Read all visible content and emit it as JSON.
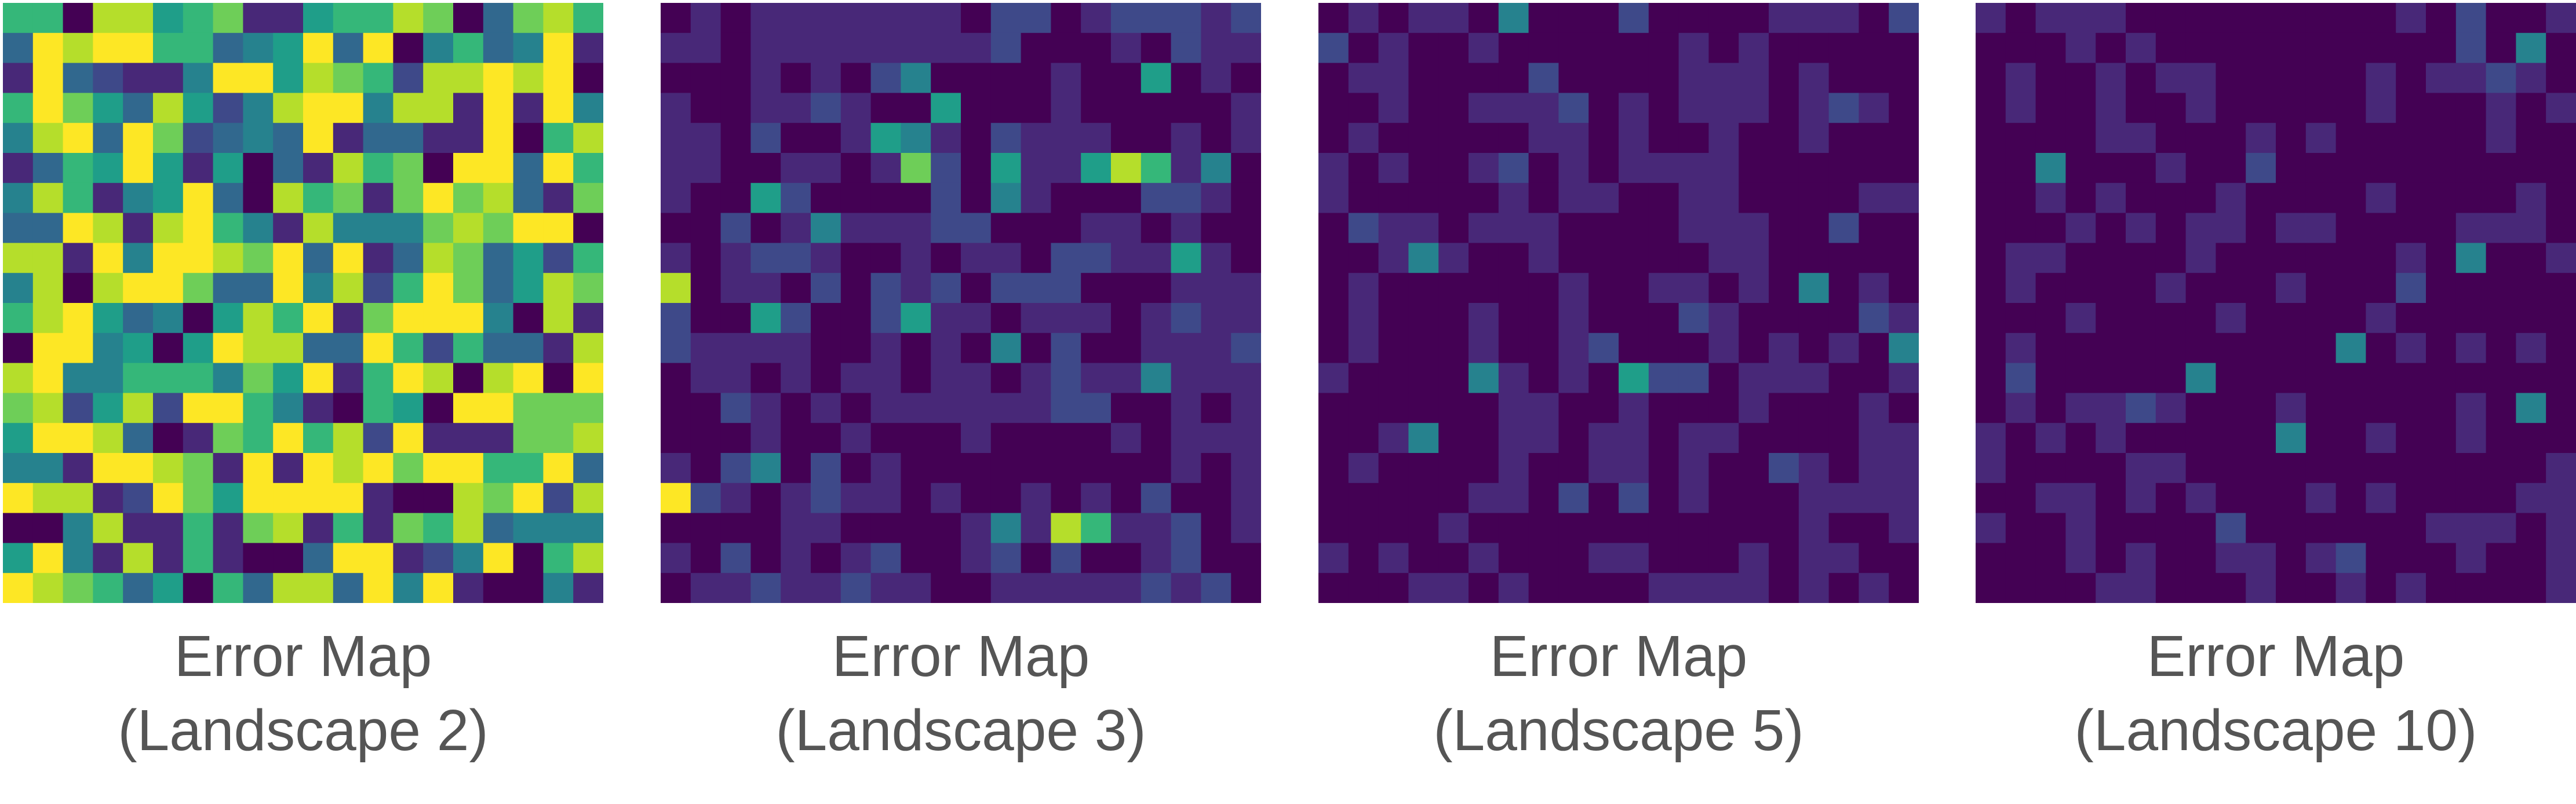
{
  "chart_data": [
    {
      "type": "heatmap",
      "title_line1": "Error Map",
      "title_line2": "(Landscape 2)",
      "colormap": "viridis",
      "value_range": [
        0,
        1
      ],
      "grid": [
        20,
        20
      ],
      "level": "high",
      "values": []
    },
    {
      "type": "heatmap",
      "title_line1": "Error Map",
      "title_line2": "(Landscape 3)",
      "colormap": "viridis",
      "value_range": [
        0,
        1
      ],
      "grid": [
        20,
        20
      ],
      "level": "low",
      "values": []
    },
    {
      "type": "heatmap",
      "title_line1": "Error Map",
      "title_line2": "(Landscape 5)",
      "colormap": "viridis",
      "value_range": [
        0,
        1
      ],
      "grid": [
        20,
        20
      ],
      "level": "very-low",
      "values": []
    },
    {
      "type": "heatmap",
      "title_line1": "Error Map",
      "title_line2": "(Landscape 10)",
      "colormap": "viridis",
      "value_range": [
        0,
        1
      ],
      "grid": [
        20,
        20
      ],
      "level": "minimal",
      "values": []
    }
  ],
  "colors": {
    "viridis": [
      "#440154",
      "#482878",
      "#3e4989",
      "#31688e",
      "#26828e",
      "#1f9e89",
      "#35b779",
      "#6ece58",
      "#b5de2b",
      "#fde725"
    ],
    "caption": "#555555"
  }
}
